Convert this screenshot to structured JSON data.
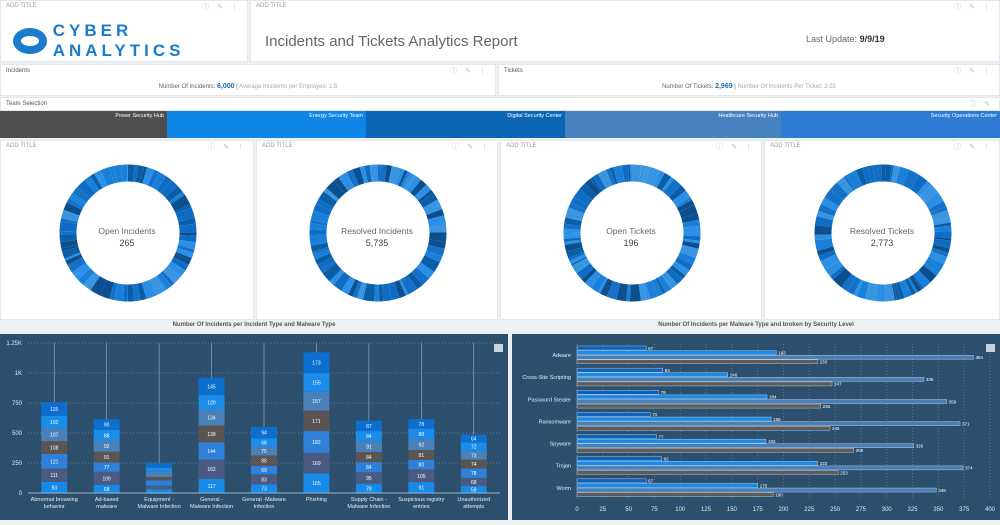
{
  "header": {
    "panel_title": "ADD TITLE",
    "logo_text": "CYBER ANALYTICS",
    "report_title": "Incidents and Tickets Analytics Report",
    "last_update_label": "Last Update:",
    "last_update_value": "9/9/19"
  },
  "incidents": {
    "title": "Incidents",
    "count_label": "Number Of Incidents:",
    "count_value": "6,000",
    "avg_label": "Average Incidents per Employee:",
    "avg_value": "1.5"
  },
  "tickets": {
    "title": "Tickets",
    "count_label": "Number Of Tickets:",
    "count_value": "2,969",
    "ratio_label": "Number Of Incidents Per Ticket:",
    "ratio_value": "2.02"
  },
  "team_selection": {
    "title": "Team Selection",
    "teams": [
      {
        "name": "Power Security Hub",
        "color": "#4e4e4e"
      },
      {
        "name": "Energy Security Team",
        "color": "#0f86e6"
      },
      {
        "name": "Digital Security Center",
        "color": "#0a66b5"
      },
      {
        "name": "Healthcare Security Hub",
        "color": "#4682c0"
      },
      {
        "name": "Security Operations Center",
        "color": "#2d7bd4"
      }
    ]
  },
  "donuts": [
    {
      "panel_title": "ADD TITLE",
      "label": "Open Incidents",
      "value": "265"
    },
    {
      "panel_title": "ADD TITLE",
      "label": "Resolved Incidents",
      "value": "5,735"
    },
    {
      "panel_title": "ADD TITLE",
      "label": "Open Tickets",
      "value": "196"
    },
    {
      "panel_title": "ADD TITLE",
      "label": "Resolved Tickets",
      "value": "2,773"
    }
  ],
  "chart_data": [
    {
      "type": "bar",
      "stacked": true,
      "title": "Number Of Incidents per Incident Type and Malware Type",
      "categories": [
        "Abnormal browsing behavior",
        "Ad-based malware",
        "Equipment - Malware Infection",
        "General - Malware Infection",
        "General -Malware Infection",
        "Phishing",
        "Supply Chain - Malware Infection",
        "Suspicious registry entries",
        "Unauthorized attempts"
      ],
      "yticks": [
        "0",
        "250",
        "500",
        "750",
        "1K",
        "1.25K"
      ],
      "ylim": [
        0,
        1250
      ],
      "grid": true,
      "segment_colors": [
        "#1789e6",
        "#4b5a82",
        "#2f80d8",
        "#5a5552",
        "#4a80b8",
        "#1a8cea",
        "#0c6fcf"
      ],
      "series": [
        [
          93,
          68,
          32,
          117,
          73,
          165,
          78,
          91,
          58
        ],
        [
          111,
          109,
          30,
          162,
          83,
          169,
          95,
          105,
          68
        ],
        [
          121,
          77,
          44,
          144,
          69,
          182,
          84,
          80,
          78
        ],
        [
          108,
          91,
          28,
          139,
          88,
          171,
          84,
          81,
          74
        ],
        [
          107,
          92,
          47,
          134,
          75,
          157,
          91,
          92,
          73
        ],
        [
          102,
          88,
          30,
          120,
          68,
          155,
          84,
          88,
          72
        ],
        [
          115,
          90,
          38,
          145,
          94,
          173,
          87,
          78,
          64
        ]
      ]
    },
    {
      "type": "bar",
      "orientation": "horizontal",
      "title": "Number Of Incidents per Malware Type and broken by Security Level",
      "categories": [
        "Adware",
        "Cross-Site Scripting",
        "Password Stealer",
        "Ransomware",
        "Spyware",
        "Trojan",
        "Worm"
      ],
      "xlim": [
        0,
        400
      ],
      "xticks": [
        "0",
        "25",
        "50",
        "75",
        "100",
        "125",
        "150",
        "175",
        "200",
        "225",
        "250",
        "275",
        "300",
        "325",
        "350",
        "375",
        "400"
      ],
      "grid": true,
      "series_colors": [
        "#0e63b8",
        "#1a8ae8",
        "#4a7fb5",
        "#5c5c5c"
      ],
      "series": [
        [
          67,
          83,
          79,
          71,
          77,
          82,
          67
        ],
        [
          193,
          146,
          184,
          188,
          183,
          233,
          175
        ],
        [
          384,
          336,
          358,
          371,
          326,
          374,
          348
        ],
        [
          233,
          247,
          236,
          245,
          268,
          253,
          190
        ]
      ]
    }
  ]
}
